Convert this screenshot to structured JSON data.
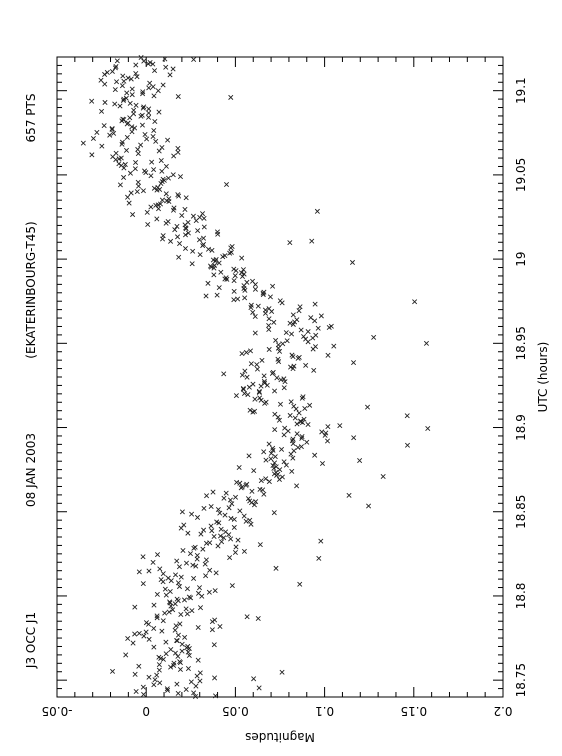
{
  "chart_data": {
    "type": "scatter",
    "orientation": "rotated-90",
    "title_parts": [
      "J3 OCC J1",
      "08 JAN 2003",
      "(EKATERINBOURG-T45)",
      "657 PTS"
    ],
    "xlabel": "UTC (hours)",
    "ylabel": "Magnitudes",
    "x_range": [
      18.74,
      19.12
    ],
    "y_range": [
      -0.05,
      0.2
    ],
    "x_ticks": [
      18.75,
      18.8,
      18.85,
      18.9,
      18.95,
      19,
      19.05,
      19.1
    ],
    "x_tick_labels": [
      "18.75",
      "18.8",
      "18.85",
      "18.9",
      "18.95",
      "19",
      "19.05",
      "19.1"
    ],
    "y_ticks": [
      -0.05,
      0,
      0.05,
      0.1,
      0.15,
      0.2
    ],
    "y_tick_labels": [
      "-0.05",
      "0",
      "0.05",
      "0.1",
      "0.15",
      "0.2"
    ],
    "marker": "x",
    "grid": false,
    "points_count": 657,
    "points_note_trend": [
      [
        18.74,
        0.015
      ],
      [
        18.76,
        0.012
      ],
      [
        18.78,
        0.015
      ],
      [
        18.8,
        0.018
      ],
      [
        18.82,
        0.025
      ],
      [
        18.84,
        0.04
      ],
      [
        18.86,
        0.055
      ],
      [
        18.88,
        0.075
      ],
      [
        18.9,
        0.09
      ],
      [
        18.92,
        0.065
      ],
      [
        18.94,
        0.075
      ],
      [
        18.96,
        0.085
      ],
      [
        18.98,
        0.055
      ],
      [
        19.0,
        0.035
      ],
      [
        19.02,
        0.02
      ],
      [
        19.04,
        0.005
      ],
      [
        19.06,
        -0.005
      ],
      [
        19.08,
        -0.01
      ],
      [
        19.1,
        -0.005
      ],
      [
        19.12,
        0.0
      ]
    ]
  }
}
